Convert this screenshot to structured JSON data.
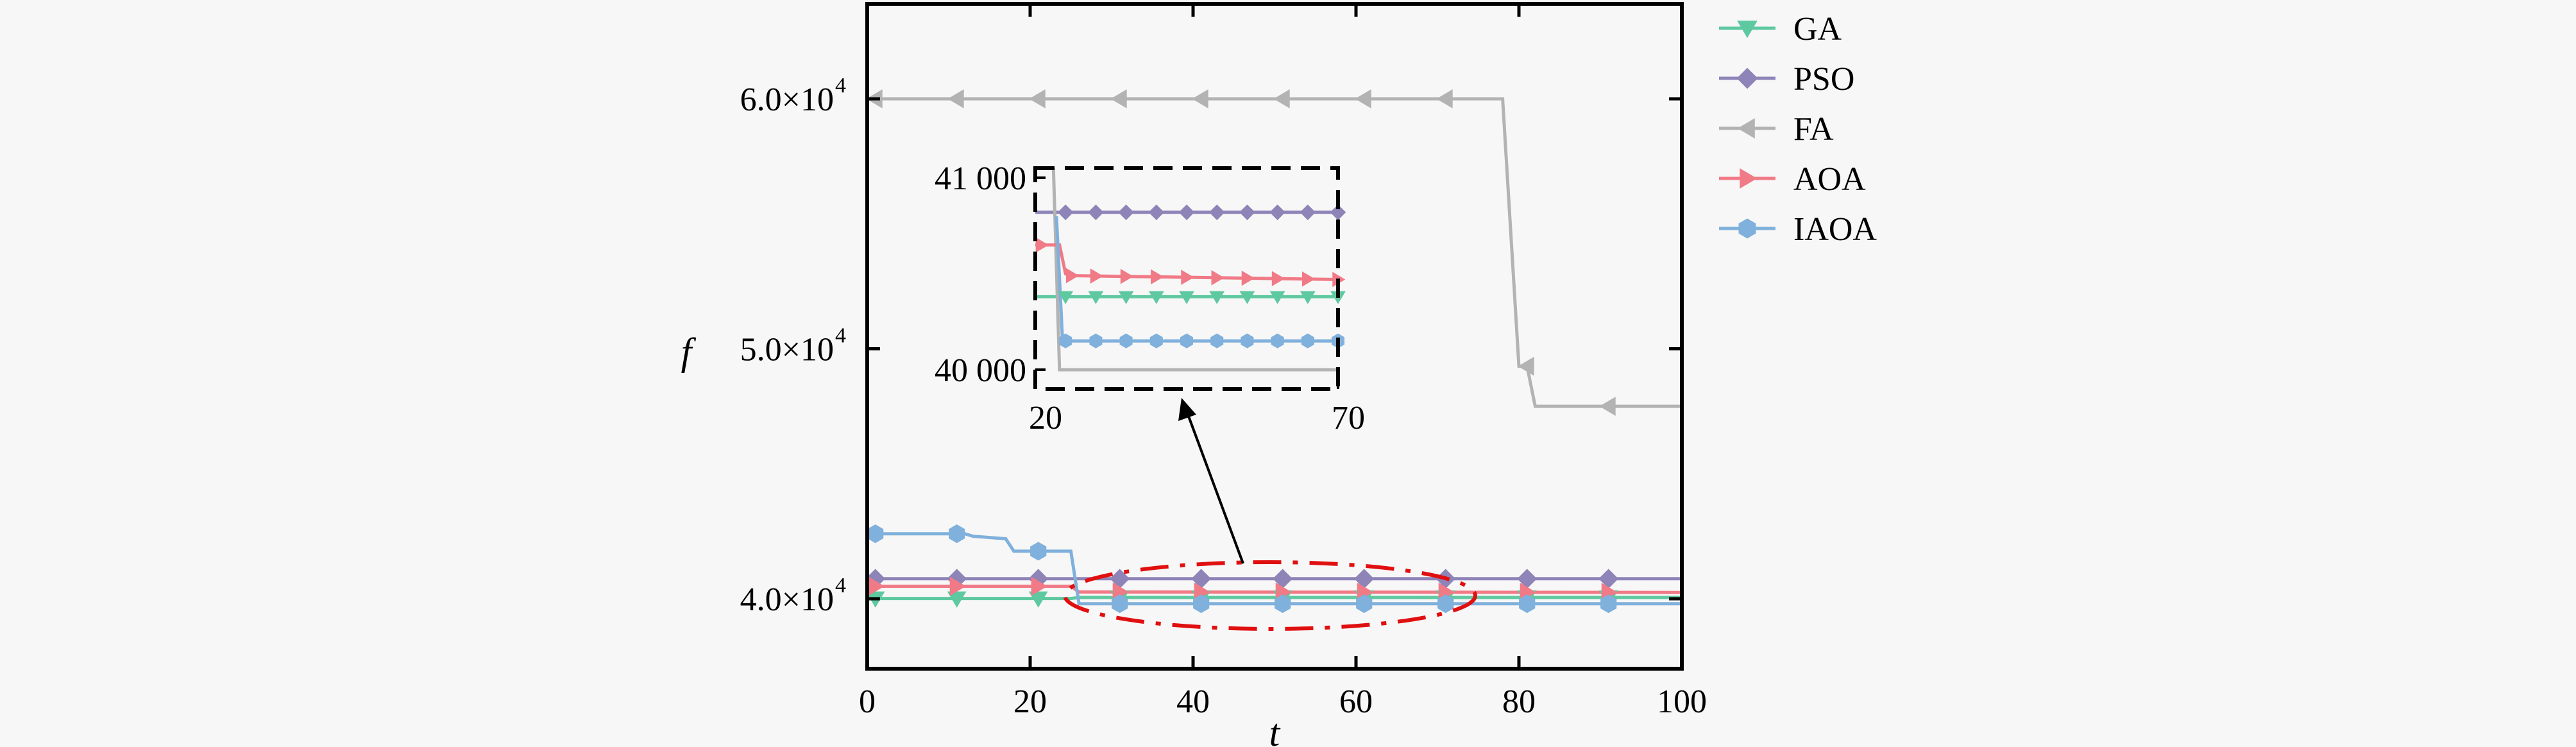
{
  "chart_data": {
    "type": "line",
    "title": "",
    "xlabel": "t",
    "ylabel": "f",
    "xlim": [
      0,
      100
    ],
    "ylim": [
      37200,
      63800
    ],
    "grid": false,
    "legend_position": "outside-right",
    "x_ticks": [
      {
        "value": 0,
        "label": "0"
      },
      {
        "value": 20,
        "label": "20"
      },
      {
        "value": 40,
        "label": "40"
      },
      {
        "value": 60,
        "label": "60"
      },
      {
        "value": 80,
        "label": "80"
      },
      {
        "value": 100,
        "label": "100"
      }
    ],
    "y_ticks": [
      {
        "value": 40000,
        "label": "4.0×10",
        "exp": "4"
      },
      {
        "value": 50000,
        "label": "5.0×10",
        "exp": "4"
      },
      {
        "value": 60000,
        "label": "6.0×10",
        "exp": "4"
      }
    ],
    "series": [
      {
        "name": "GA",
        "color": "#5ec9a0",
        "marker": "triangle-down",
        "points": [
          [
            0,
            40010
          ],
          [
            25,
            40010
          ],
          [
            26,
            40050
          ],
          [
            100,
            40050
          ]
        ],
        "marker_x": [
          1,
          11,
          21,
          31,
          41,
          51,
          61,
          71,
          81,
          91
        ]
      },
      {
        "name": "PSO",
        "color": "#8e84b8",
        "marker": "diamond",
        "points": [
          [
            0,
            40800
          ],
          [
            100,
            40800
          ]
        ],
        "marker_x": [
          1,
          11,
          21,
          31,
          41,
          51,
          61,
          71,
          81,
          91
        ]
      },
      {
        "name": "FA",
        "color": "#b3b3b3",
        "marker": "triangle-left",
        "points": [
          [
            0,
            60000
          ],
          [
            78,
            60000
          ],
          [
            80,
            49300
          ],
          [
            81,
            49300
          ],
          [
            82,
            47700
          ],
          [
            100,
            47700
          ]
        ],
        "marker_x": [
          1,
          11,
          21,
          31,
          41,
          51,
          61,
          71,
          81,
          91
        ]
      },
      {
        "name": "AOA",
        "color": "#f07a86",
        "marker": "triangle-right",
        "points": [
          [
            0,
            40500
          ],
          [
            25,
            40500
          ],
          [
            26,
            40270
          ],
          [
            100,
            40250
          ]
        ],
        "marker_x": [
          1,
          11,
          21,
          31,
          41,
          51,
          61,
          71,
          81,
          91
        ]
      },
      {
        "name": "IAOA",
        "color": "#80b0dc",
        "marker": "hexagon",
        "points": [
          [
            0,
            42600
          ],
          [
            12,
            42600
          ],
          [
            13,
            42500
          ],
          [
            17,
            42400
          ],
          [
            18,
            41900
          ],
          [
            25,
            41900
          ],
          [
            26,
            39800
          ],
          [
            100,
            39800
          ]
        ],
        "marker_x": [
          1,
          11,
          21,
          31,
          41,
          51,
          61,
          71,
          81,
          91
        ]
      }
    ],
    "inset": {
      "xlim": [
        20,
        70
      ],
      "ylim": [
        39900,
        41050
      ],
      "x_ticks": [
        {
          "value": 20,
          "label": "20"
        },
        {
          "value": 70,
          "label": "70"
        }
      ],
      "y_ticks": [
        {
          "value": 40000,
          "label": "40 000"
        },
        {
          "value": 41000,
          "label": "41 000"
        }
      ],
      "series": [
        {
          "name": "GA",
          "points": [
            [
              20,
              40380
            ],
            [
              70,
              40380
            ]
          ],
          "marker_x": [
            25,
            30,
            35,
            40,
            45,
            50,
            55,
            60,
            65,
            70
          ]
        },
        {
          "name": "PSO",
          "points": [
            [
              20,
              40820
            ],
            [
              70,
              40820
            ]
          ],
          "marker_x": [
            25,
            30,
            35,
            40,
            45,
            50,
            55,
            60,
            65,
            70
          ]
        },
        {
          "name": "FA",
          "points": [
            [
              23,
              41050
            ],
            [
              24,
              40000
            ],
            [
              70,
              40000
            ]
          ],
          "marker_x": []
        },
        {
          "name": "AOA",
          "points": [
            [
              20,
              40650
            ],
            [
              24,
              40650
            ],
            [
              25,
              40500
            ],
            [
              26,
              40490
            ],
            [
              70,
              40470
            ]
          ],
          "marker_x": [
            21,
            26,
            30,
            35,
            40,
            45,
            50,
            55,
            60,
            65,
            70
          ]
        },
        {
          "name": "IAOA",
          "points": [
            [
              23.5,
              40800
            ],
            [
              24.5,
              40150
            ],
            [
              70,
              40150
            ]
          ],
          "marker_x": [
            25,
            30,
            35,
            40,
            45,
            50,
            55,
            60,
            65,
            70
          ]
        }
      ]
    }
  }
}
